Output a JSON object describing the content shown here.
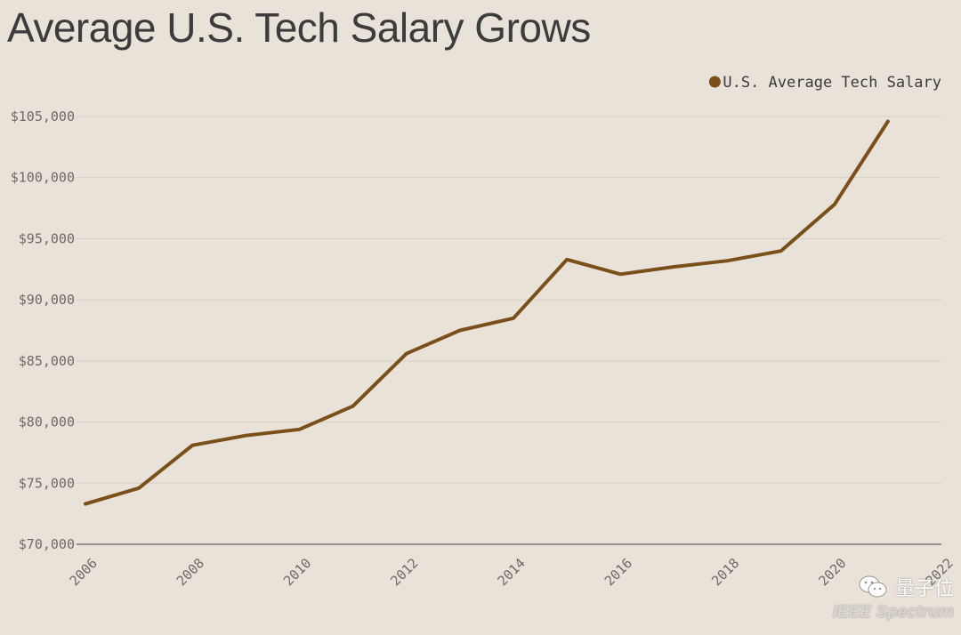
{
  "chart_data": {
    "type": "line",
    "title": "Average U.S. Tech Salary Grows",
    "xlabel": "",
    "ylabel": "",
    "x_ticks": [
      "2006",
      "2008",
      "2010",
      "2012",
      "2014",
      "2016",
      "2018",
      "2020",
      "2022"
    ],
    "y_ticks": [
      "$70,000",
      "$75,000",
      "$80,000",
      "$85,000",
      "$90,000",
      "$95,000",
      "$100,000",
      "$105,000"
    ],
    "xlim": [
      2006,
      2022
    ],
    "ylim": [
      70000,
      105000
    ],
    "grid": true,
    "legend_position": "top-right",
    "series": [
      {
        "name": "U.S. Average Tech Salary",
        "color": "#7a4f1a",
        "x": [
          2006,
          2007,
          2008,
          2009,
          2010,
          2011,
          2012,
          2013,
          2014,
          2015,
          2016,
          2017,
          2018,
          2019,
          2020,
          2021
        ],
        "values": [
          73300,
          74600,
          78100,
          78900,
          79400,
          81300,
          85600,
          87500,
          88500,
          93300,
          92100,
          92700,
          93200,
          94000,
          97800,
          104600
        ]
      }
    ]
  },
  "colors": {
    "background": "#e8e2d9",
    "grid": "#d6d0c7",
    "axis": "#7a7670",
    "tick_text": "#6e6a65",
    "title_text": "#3c3c3c"
  },
  "watermark": {
    "brand_cn": "量子位",
    "source": "IEEE Spectrum",
    "icon": "wechat-icon"
  }
}
